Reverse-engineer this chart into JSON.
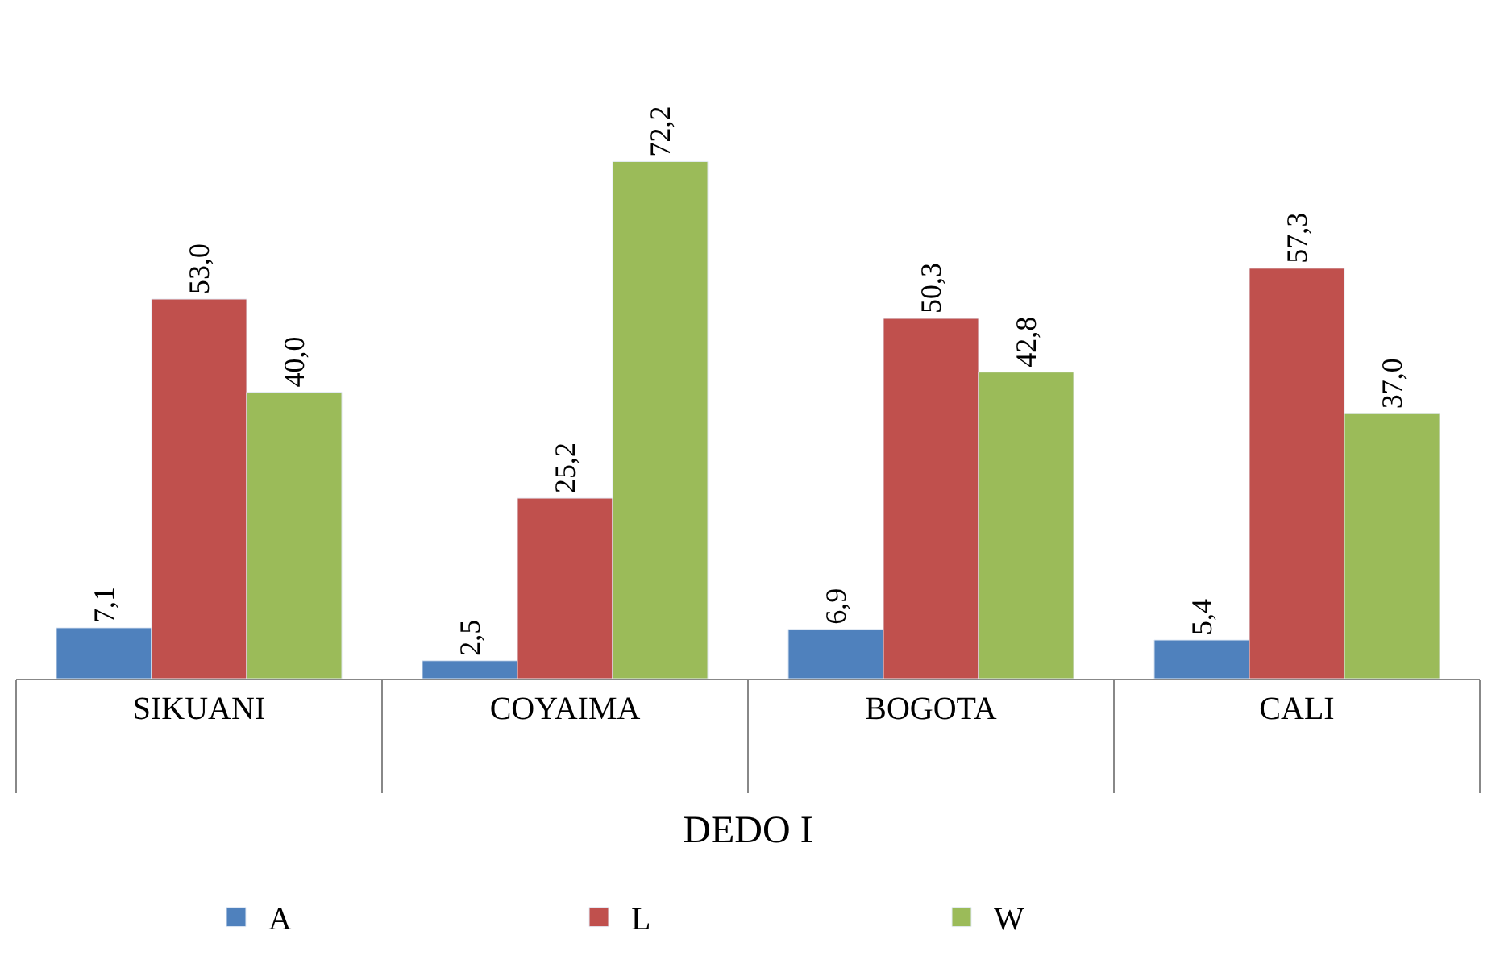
{
  "chart_data": {
    "type": "bar",
    "xlabel": "DEDO I",
    "categories": [
      "SIKUANI",
      "COYAIMA",
      "BOGOTA",
      "CALI"
    ],
    "series": [
      {
        "name": "A",
        "color": "#4f81bd",
        "values": [
          7.1,
          2.5,
          6.9,
          5.4
        ],
        "value_labels": [
          "7,1",
          "2,5",
          "6,9",
          "5,4"
        ]
      },
      {
        "name": "L",
        "color": "#c0504d",
        "values": [
          53.0,
          25.2,
          50.3,
          57.3
        ],
        "value_labels": [
          "53,0",
          "25,2",
          "50,3",
          "57,3"
        ]
      },
      {
        "name": "W",
        "color": "#9bbb59",
        "values": [
          40.0,
          72.2,
          42.8,
          37.0
        ],
        "value_labels": [
          "40,0",
          "72,2",
          "42,8",
          "37,0"
        ]
      }
    ],
    "legend": "bottom"
  }
}
